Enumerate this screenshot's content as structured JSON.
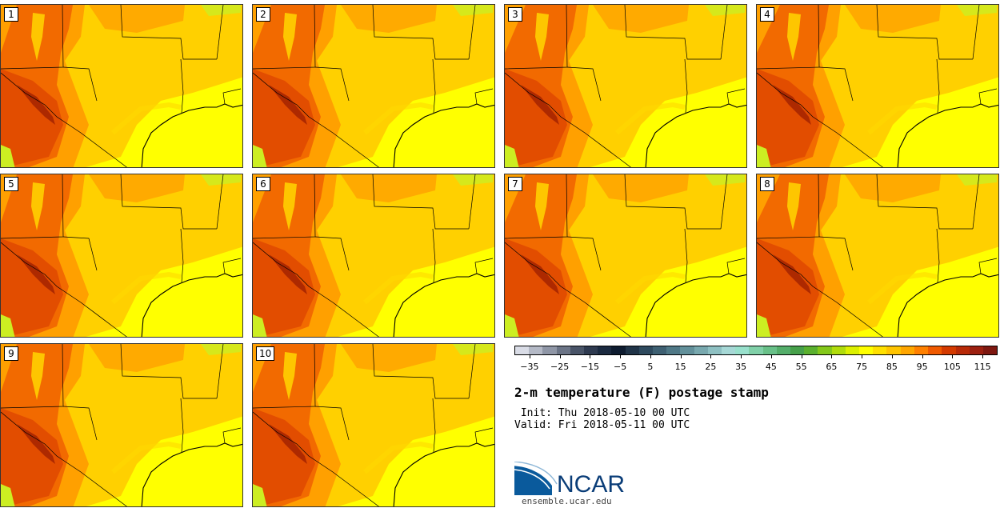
{
  "title": "2-m temperature (F) postage stamp",
  "init_text": " Init: Thu 2018-05-10 00 UTC",
  "valid_text": "Valid: Fri 2018-05-11 00 UTC",
  "logo_text": "NCAR",
  "url_text": "ensemble.ucar.edu",
  "members": [
    "1",
    "2",
    "3",
    "4",
    "5",
    "6",
    "7",
    "8",
    "9",
    "10"
  ],
  "colorbar": {
    "tick_labels": [
      "-35",
      "-25",
      "-15",
      "-5",
      "5",
      "15",
      "25",
      "35",
      "45",
      "55",
      "65",
      "75",
      "85",
      "95",
      "105",
      "115"
    ],
    "min": -40,
    "max": 120,
    "step": 5,
    "colors": [
      "#d9dce6",
      "#b4b9c6",
      "#8f96a6",
      "#6b7486",
      "#495468",
      "#2e3a50",
      "#1b2a40",
      "#0e1c30",
      "#203448",
      "#2e4a5e",
      "#3e6072",
      "#4f7886",
      "#62909a",
      "#78a8ae",
      "#8ec0c2",
      "#a6d8d6",
      "#98e0cc",
      "#80d0a8",
      "#68c088",
      "#54ae6a",
      "#46a04a",
      "#5ab02e",
      "#84c81a",
      "#b0dc0c",
      "#dcf000",
      "#ffff00",
      "#ffe000",
      "#ffc400",
      "#ffa600",
      "#ff8000",
      "#f05a00",
      "#d43a00",
      "#b82a08",
      "#9c2010",
      "#7e1810"
    ]
  },
  "legend_colors": {
    "hot": "#f06000",
    "warm": "#ffa000",
    "mild": "#ffd000",
    "cool": "#ffff00",
    "green": "#ccee22"
  }
}
